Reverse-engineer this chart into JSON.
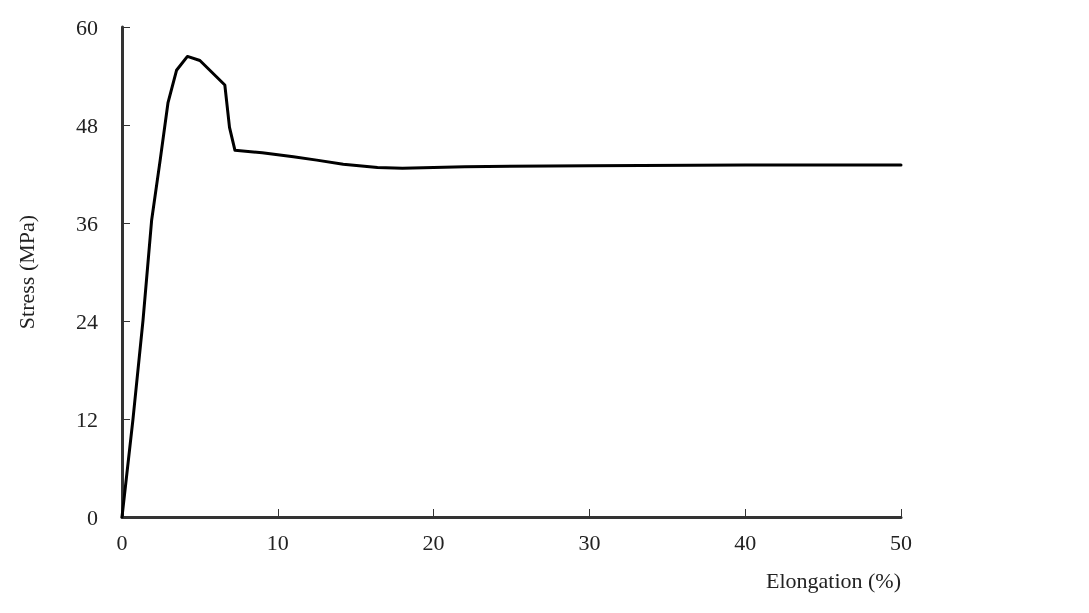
{
  "chart_data": {
    "type": "line",
    "xlabel": "Elongation (%)",
    "ylabel": "Stress (MPa)",
    "xlim": [
      0,
      50
    ],
    "xticks": [
      0,
      10,
      20,
      30,
      40,
      50
    ],
    "ylim": [
      0,
      60
    ],
    "yticks": [
      0,
      12,
      24,
      36,
      48,
      60
    ],
    "grid": false,
    "marker": "none",
    "line_style": "solid",
    "series": [
      {
        "color": "#000000",
        "x": [
          0,
          0.7,
          1.35,
          1.9,
          2.45,
          2.95,
          3.5,
          4.2,
          5.0,
          6.6,
          6.9,
          7.25,
          9,
          11,
          12.5,
          14.2,
          16.4,
          18,
          22,
          30,
          40,
          50
        ],
        "values": [
          0,
          11.9,
          24.1,
          36.3,
          43.7,
          50.7,
          54.7,
          56.4,
          55.9,
          52.9,
          47.7,
          44.9,
          44.6,
          44.1,
          43.7,
          43.2,
          42.8,
          42.7,
          42.9,
          43.0,
          43.1,
          43.1
        ]
      }
    ]
  }
}
